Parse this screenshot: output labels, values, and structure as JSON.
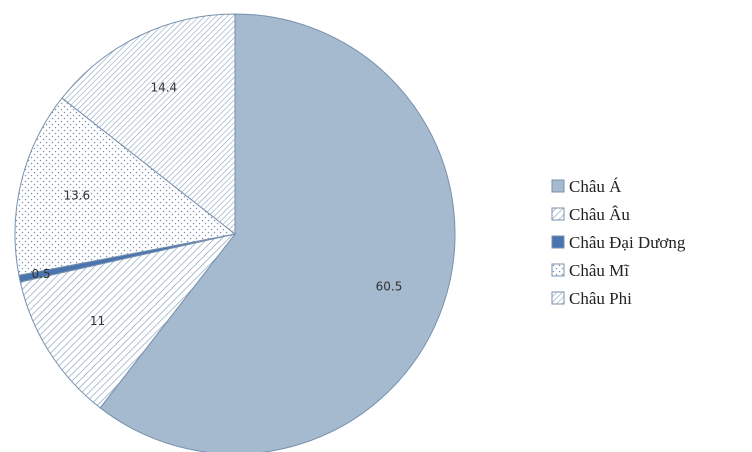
{
  "chart_data": {
    "type": "pie",
    "series": [
      {
        "categories": [
          "Châu Á",
          "Châu Âu",
          "Châu Đại Dương",
          "Châu Mĩ",
          "Châu Phi"
        ],
        "values": [
          60.5,
          11,
          0.5,
          13.6,
          14.4
        ],
        "data_labels": [
          "60.5",
          "11",
          "0.5",
          "13.6",
          "14.4"
        ]
      }
    ],
    "legend": {
      "position": "right",
      "entries": [
        "Châu Á",
        "Châu Âu",
        "Châu Đại Dương",
        "Châu Mĩ",
        "Châu Phi"
      ]
    },
    "colors": [
      "#a5b9cf",
      "#ffffff",
      "#4a74ae",
      "#ffffff",
      "#ffffff"
    ],
    "patterns": [
      "solid",
      "diagonal-lines",
      "solid",
      "dots",
      "diagonal-lines"
    ]
  }
}
